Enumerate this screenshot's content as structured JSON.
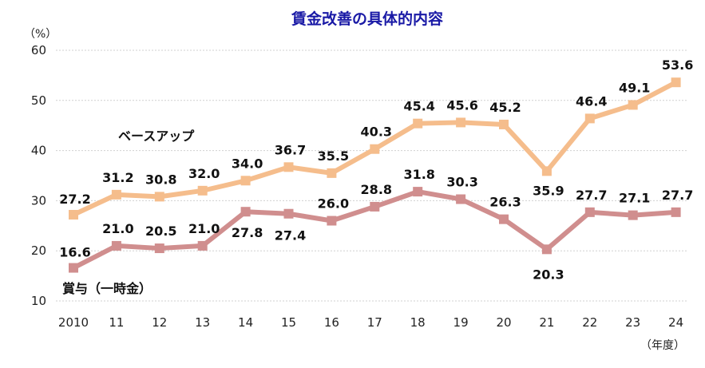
{
  "chart_data": {
    "type": "line",
    "title": "賃金改善の具体的内容",
    "ylabel": "（%）",
    "xlabel": "（年度）",
    "ylim": [
      10,
      60
    ],
    "yticks": [
      10,
      20,
      30,
      40,
      50,
      60
    ],
    "categories": [
      "2010",
      "11",
      "12",
      "13",
      "14",
      "15",
      "16",
      "17",
      "18",
      "19",
      "20",
      "21",
      "22",
      "23",
      "24"
    ],
    "series": [
      {
        "name": "ベースアップ",
        "color": "#f5bd8c",
        "values": [
          27.2,
          31.2,
          30.8,
          32.0,
          34.0,
          36.7,
          35.5,
          40.3,
          45.4,
          45.6,
          45.2,
          35.9,
          46.4,
          49.1,
          53.6
        ],
        "labels": [
          "27.2",
          "31.2",
          "30.8",
          "32.0",
          "34.0",
          "36.7",
          "35.5",
          "40.3",
          "45.4",
          "45.6",
          "45.2",
          "35.9",
          "46.4",
          "49.1",
          "53.6"
        ]
      },
      {
        "name": "賞与（一時金）",
        "color": "#d08e8e",
        "values": [
          16.6,
          21.0,
          20.5,
          21.0,
          27.8,
          27.4,
          26.0,
          28.8,
          31.8,
          30.3,
          26.3,
          20.3,
          27.7,
          27.1,
          27.7
        ],
        "labels": [
          "16.6",
          "21.0",
          "20.5",
          "21.0",
          "27.8",
          "27.4",
          "26.0",
          "28.8",
          "31.8",
          "30.3",
          "26.3",
          "20.3",
          "27.7",
          "27.1",
          "27.7"
        ]
      }
    ]
  }
}
